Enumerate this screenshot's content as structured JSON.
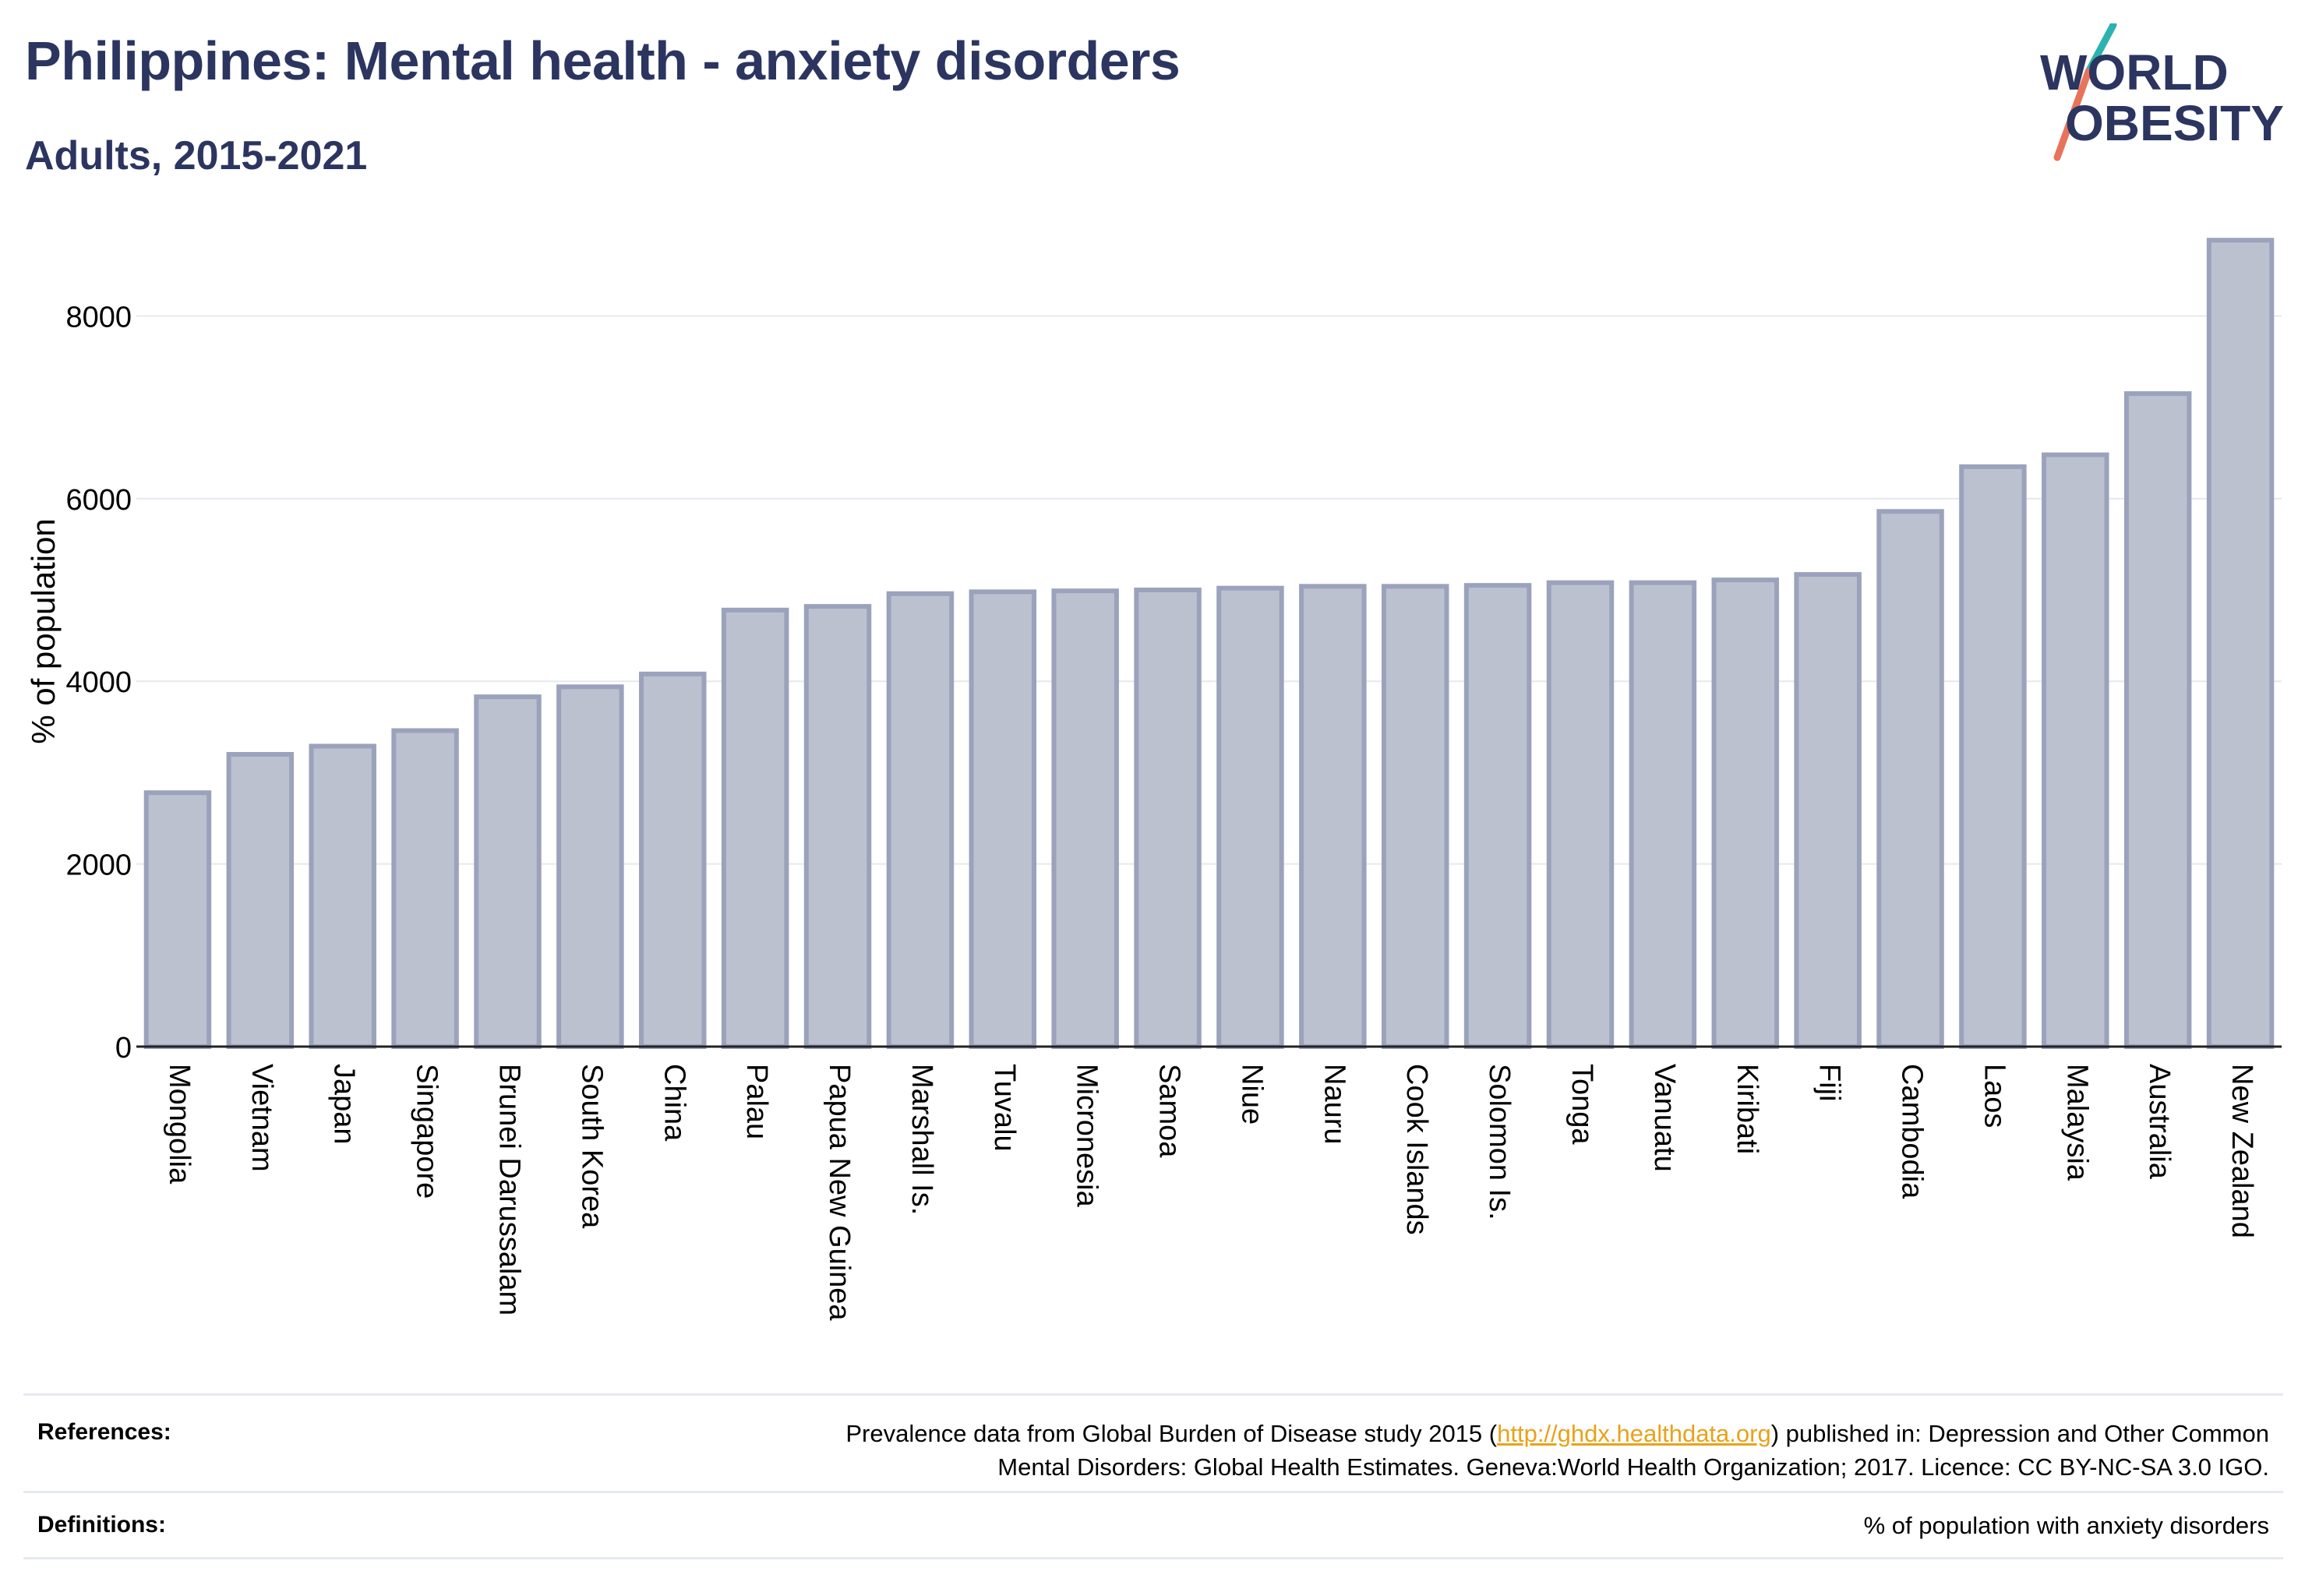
{
  "header": {
    "title": "Philippines: Mental health - anxiety disorders",
    "subtitle": "Adults, 2015-2021"
  },
  "logo": {
    "line1": "WORLD",
    "line2": "OBESITY",
    "brand_color": "#2b3560",
    "accent_teal": "#2bb3b1",
    "accent_coral": "#e8735a"
  },
  "chart_data": {
    "type": "bar",
    "title": "",
    "xlabel": "",
    "ylabel": "% of population",
    "ylim": [
      0,
      8900
    ],
    "yticks": [
      0,
      2000,
      4000,
      6000,
      8000
    ],
    "grid": true,
    "bar_color": "#bcc1d0",
    "bar_edge_color": "#9ba2bb",
    "categories": [
      "Mongolia",
      "Vietnam",
      "Japan",
      "Singapore",
      "Brunei Darussalam",
      "South Korea",
      "China",
      "Palau",
      "Papua New Guinea",
      "Marshall Is.",
      "Tuvalu",
      "Micronesia",
      "Samoa",
      "Niue",
      "Nauru",
      "Cook Islands",
      "Solomon Is.",
      "Tonga",
      "Vanuatu",
      "Kiribati",
      "Fiji",
      "Cambodia",
      "Laos",
      "Malaysia",
      "Australia",
      "New Zealand"
    ],
    "values": [
      2780,
      3200,
      3290,
      3460,
      3830,
      3940,
      4080,
      4780,
      4820,
      4960,
      4980,
      4990,
      5000,
      5020,
      5040,
      5040,
      5050,
      5080,
      5080,
      5110,
      5170,
      5860,
      6350,
      6480,
      7150,
      8830
    ]
  },
  "footer": {
    "references_label": "References:",
    "references_text_before": "Prevalence data from Global Burden of Disease study 2015 (",
    "references_link": "http://ghdx.healthdata.org",
    "references_text_after": ") published in: Depression and Other Common",
    "references_text_line2": "Mental Disorders: Global Health Estimates. Geneva:World Health Organization; 2017. Licence: CC BY-NC-SA 3.0 IGO.",
    "definitions_label": "Definitions:",
    "definitions_text": "% of population with anxiety disorders"
  }
}
